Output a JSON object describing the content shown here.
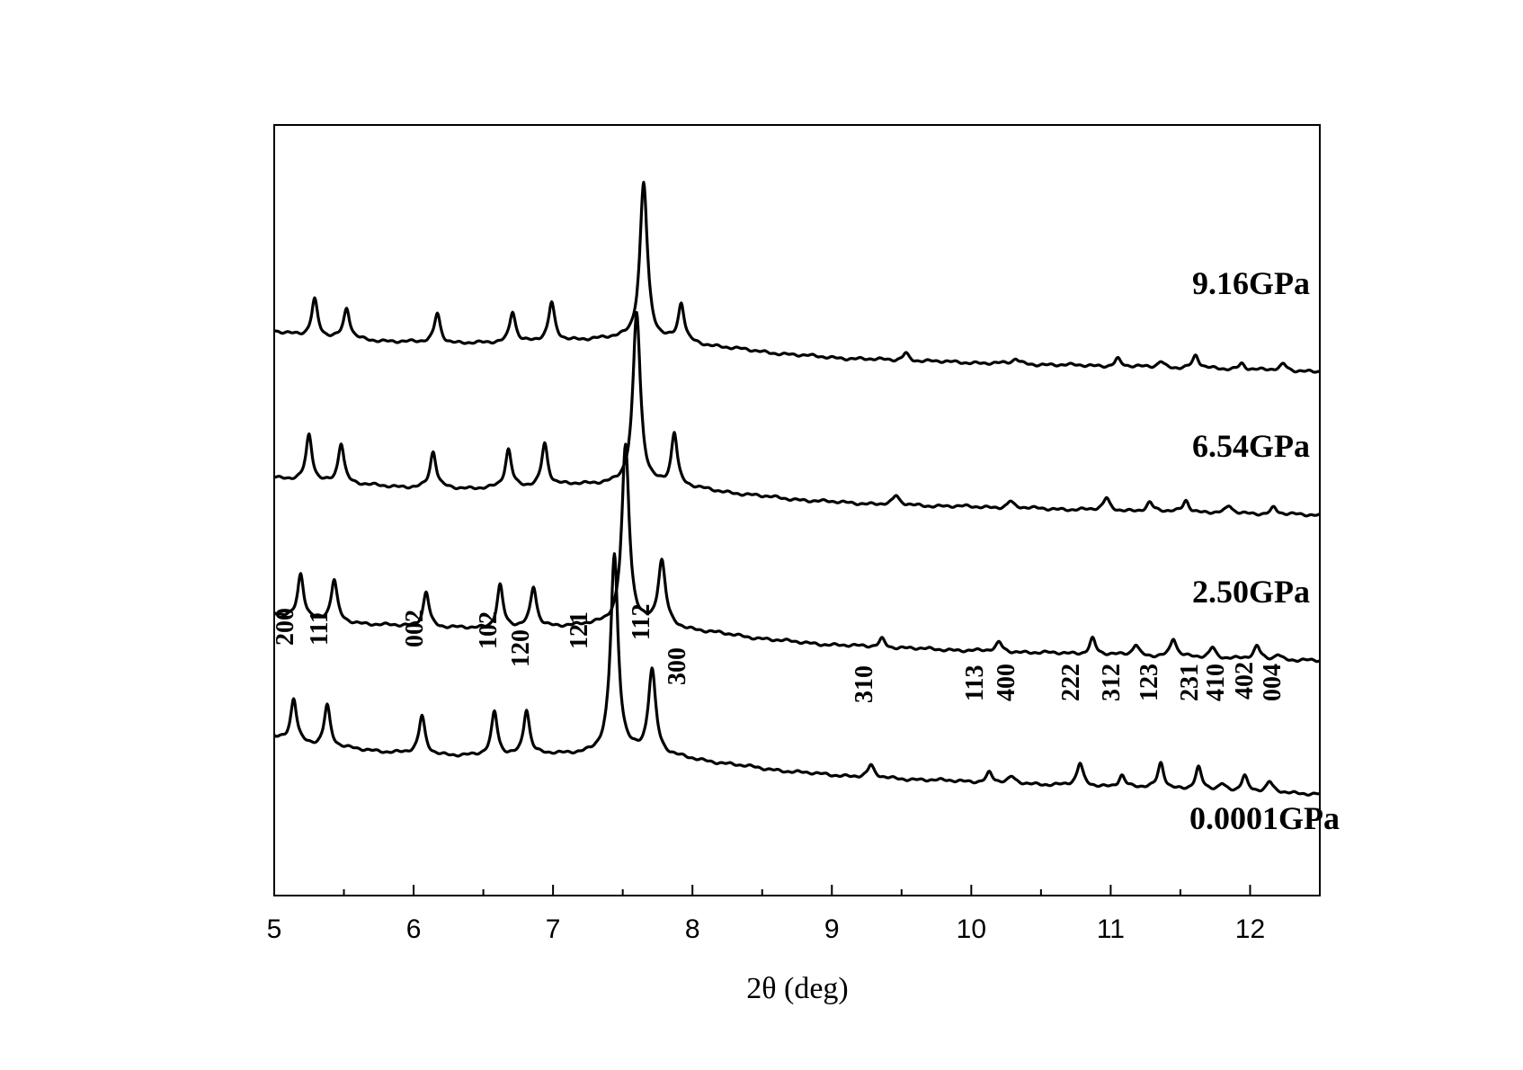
{
  "chart_data": {
    "type": "line",
    "title": "",
    "xlabel": "2θ (deg)",
    "ylabel": "",
    "xlim": [
      5,
      12.5
    ],
    "xticks": [
      5,
      6,
      7,
      8,
      9,
      10,
      11,
      12
    ],
    "grid": false,
    "legend": "none",
    "line_color": "#000000",
    "series": [
      {
        "name": "0.0001GPa",
        "peaks": [
          {
            "hkl": "200",
            "x": 5.14,
            "height": 0.22
          },
          {
            "hkl": "111",
            "x": 5.38,
            "height": 0.21
          },
          {
            "hkl": "002",
            "x": 6.06,
            "height": 0.19
          },
          {
            "hkl": "102",
            "x": 6.58,
            "height": 0.22
          },
          {
            "hkl": "120",
            "x": 6.81,
            "height": 0.23
          },
          {
            "hkl": "121",
            "x": 7.44,
            "height": 1.0
          },
          {
            "hkl": "112",
            "x": 7.71,
            "height": 0.43
          },
          {
            "hkl": "300",
            "x": 7.95,
            "height": 0.0
          },
          {
            "hkl": "310",
            "x": 9.28,
            "height": 0.06
          },
          {
            "hkl": "113",
            "x": 10.13,
            "height": 0.05
          },
          {
            "hkl": "400",
            "x": 10.29,
            "height": 0.03
          },
          {
            "hkl": "222",
            "x": 10.78,
            "height": 0.11
          },
          {
            "hkl": "312",
            "x": 11.08,
            "height": 0.06
          },
          {
            "hkl": "123",
            "x": 11.36,
            "height": 0.13
          },
          {
            "hkl": "231",
            "x": 11.63,
            "height": 0.11
          },
          {
            "hkl": "410",
            "x": 11.8,
            "height": 0.03
          },
          {
            "hkl": "402",
            "x": 11.96,
            "height": 0.08
          },
          {
            "hkl": "004",
            "x": 12.14,
            "height": 0.05
          }
        ]
      },
      {
        "name": "2.50GPa",
        "peaks": [
          {
            "x": 5.19,
            "height": 0.25
          },
          {
            "x": 5.43,
            "height": 0.23
          },
          {
            "x": 6.09,
            "height": 0.2
          },
          {
            "x": 6.62,
            "height": 0.24
          },
          {
            "x": 6.86,
            "height": 0.22
          },
          {
            "x": 7.52,
            "height": 1.0
          },
          {
            "x": 7.78,
            "height": 0.36
          },
          {
            "x": 9.36,
            "height": 0.05
          },
          {
            "x": 10.2,
            "height": 0.05
          },
          {
            "x": 10.87,
            "height": 0.09
          },
          {
            "x": 11.18,
            "height": 0.06
          },
          {
            "x": 11.45,
            "height": 0.1
          },
          {
            "x": 11.73,
            "height": 0.06
          },
          {
            "x": 12.05,
            "height": 0.07
          },
          {
            "x": 12.2,
            "height": 0.03
          }
        ]
      },
      {
        "name": "6.54GPa",
        "peaks": [
          {
            "x": 5.25,
            "height": 0.27
          },
          {
            "x": 5.48,
            "height": 0.24
          },
          {
            "x": 6.14,
            "height": 0.21
          },
          {
            "x": 6.68,
            "height": 0.22
          },
          {
            "x": 6.94,
            "height": 0.25
          },
          {
            "x": 7.6,
            "height": 1.0
          },
          {
            "x": 7.87,
            "height": 0.31
          },
          {
            "x": 9.46,
            "height": 0.05
          },
          {
            "x": 10.28,
            "height": 0.04
          },
          {
            "x": 10.97,
            "height": 0.07
          },
          {
            "x": 11.28,
            "height": 0.05
          },
          {
            "x": 11.54,
            "height": 0.07
          },
          {
            "x": 11.85,
            "height": 0.04
          },
          {
            "x": 12.17,
            "height": 0.04
          }
        ]
      },
      {
        "name": "9.16GPa",
        "peaks": [
          {
            "x": 5.29,
            "height": 0.24
          },
          {
            "x": 5.52,
            "height": 0.19
          },
          {
            "x": 6.17,
            "height": 0.19
          },
          {
            "x": 6.71,
            "height": 0.2
          },
          {
            "x": 6.99,
            "height": 0.24
          },
          {
            "x": 7.65,
            "height": 1.0
          },
          {
            "x": 7.92,
            "height": 0.24
          },
          {
            "x": 9.53,
            "height": 0.05
          },
          {
            "x": 10.32,
            "height": 0.03
          },
          {
            "x": 11.05,
            "height": 0.05
          },
          {
            "x": 11.36,
            "height": 0.04
          },
          {
            "x": 11.61,
            "height": 0.08
          },
          {
            "x": 11.94,
            "height": 0.04
          },
          {
            "x": 12.24,
            "height": 0.04
          }
        ]
      }
    ]
  }
}
